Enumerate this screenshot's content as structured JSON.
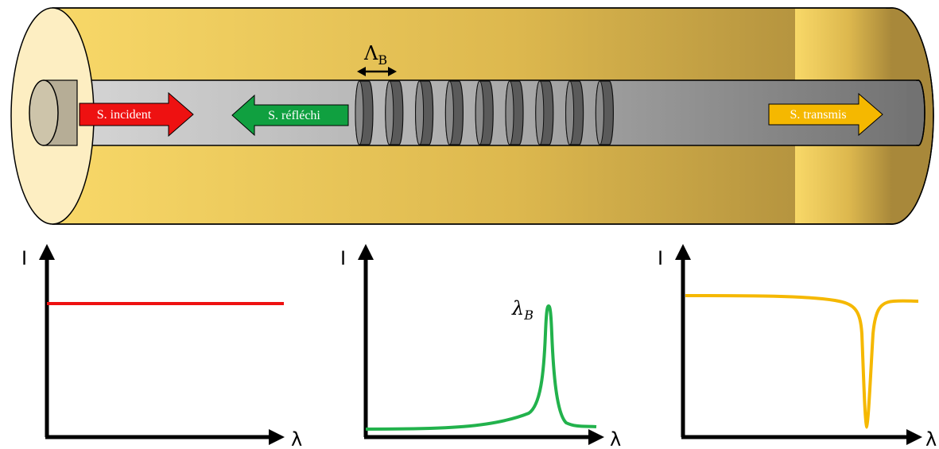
{
  "fiber": {
    "grating_period_symbol": "Λ",
    "grating_period_subscript": "B",
    "arrows": {
      "incident": {
        "label": "S. incident",
        "color": "#ee1111"
      },
      "reflected": {
        "label": "S. réfléchi",
        "color": "#10a040"
      },
      "transmitted": {
        "label": "S. transmis",
        "color": "#f5b800"
      }
    },
    "colors": {
      "cladding_light": "#f8d868",
      "cladding_dark": "#a8883a",
      "core_light": "#d6d6d6",
      "core_dark": "#727272"
    }
  },
  "graphs": [
    {
      "y_axis_label": "I",
      "x_axis_label": "λ",
      "curve": "incident",
      "color": "#ee1111"
    },
    {
      "y_axis_label": "I",
      "x_axis_label": "λ",
      "curve": "reflected",
      "color": "#22b24c",
      "peak_label": "λ",
      "peak_subscript": "B"
    },
    {
      "y_axis_label": "I",
      "x_axis_label": "λ",
      "curve": "transmitted",
      "color": "#f5b800"
    }
  ]
}
